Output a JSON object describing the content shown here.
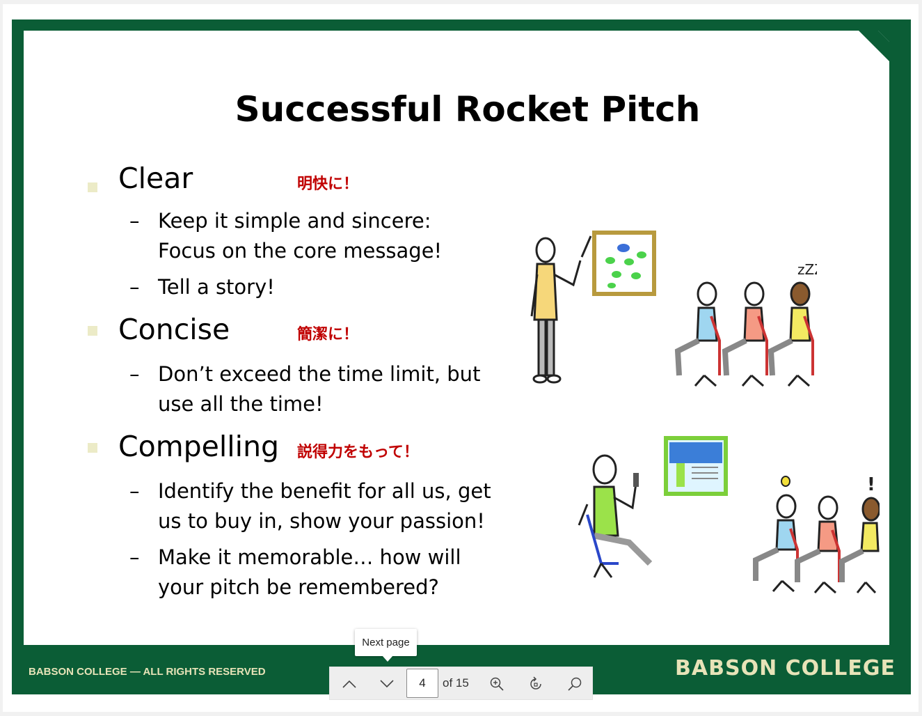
{
  "slide": {
    "title": "Successful Rocket Pitch",
    "bullets": [
      {
        "heading": "Clear",
        "japanese": "明快に！",
        "subs": [
          {
            "line1": "Keep it simple and sincere:",
            "line2": "Focus on the core message!"
          },
          {
            "line1": "Tell a story!",
            "line2": ""
          }
        ]
      },
      {
        "heading": "Concise",
        "japanese": "簡潔に！",
        "subs": [
          {
            "line1": "Don’t exceed the time limit, but",
            "line2": "use all the time!"
          }
        ]
      },
      {
        "heading": "Compelling",
        "japanese": "説得力をもって！",
        "subs": [
          {
            "line1": "Identify the benefit for all us, get",
            "line2": "us to buy in, show your passion!"
          },
          {
            "line1": "Make it memorable… how will",
            "line2": "your pitch be remembered?"
          }
        ]
      }
    ],
    "dash": "–",
    "footer_left": "BABSON COLLEGE — ALL RIGHTS RESERVED",
    "footer_right": "BABSON COLLEGE",
    "illustration_top": {
      "zzz": "zZZ"
    },
    "illustration_bottom": {
      "exclaim": "!"
    }
  },
  "viewer": {
    "prev_icon": "chevron-up-icon",
    "next_icon": "chevron-down-icon",
    "page_current": "4",
    "page_total_label": "of 15",
    "zoom_icon": "zoom-in-icon",
    "rotate_icon": "rotate-icon",
    "search_icon": "search-icon",
    "tooltip": "Next page"
  },
  "colors": {
    "frame_green": "#0b5d36",
    "footer_text": "#e7e3b8",
    "japanese_red": "#c00000",
    "bullet_square": "#ecebc7"
  }
}
